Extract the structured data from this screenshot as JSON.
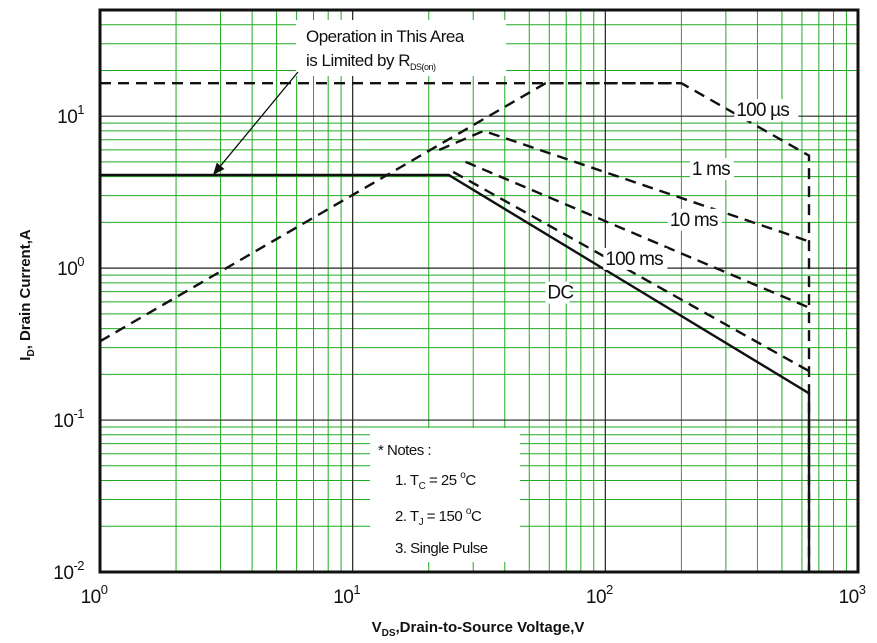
{
  "chart_data": {
    "type": "line",
    "x_scale": "log",
    "y_scale": "log",
    "xlim": [
      1,
      1000
    ],
    "ylim": [
      0.01,
      50
    ],
    "xlabel": {
      "main": "V",
      "sub": "DS",
      "rest": ",Drain-to-Source Voltage,V"
    },
    "ylabel": {
      "main": "I",
      "sub": "D",
      "rest": ", Drain Current,A"
    },
    "x_ticks": [
      {
        "value": 1,
        "base": "10",
        "exp": "0"
      },
      {
        "value": 10,
        "base": "10",
        "exp": "1"
      },
      {
        "value": 100,
        "base": "10",
        "exp": "2"
      },
      {
        "value": 1000,
        "base": "10",
        "exp": "3"
      }
    ],
    "y_ticks": [
      {
        "value": 0.01,
        "base": "10",
        "exp": "-2"
      },
      {
        "value": 0.1,
        "base": "10",
        "exp": "-1"
      },
      {
        "value": 1,
        "base": "10",
        "exp": "0"
      },
      {
        "value": 10,
        "base": "10",
        "exp": "1"
      }
    ],
    "grid": true,
    "grid_color": "#22aa22",
    "series": [
      {
        "label": "100 µs",
        "style": "dashed",
        "points": [
          [
            1,
            0.33
          ],
          [
            58,
            16.5
          ],
          [
            200,
            16.5
          ],
          [
            640,
            5.5
          ],
          [
            640,
            0.01
          ]
        ]
      },
      {
        "label": "1 ms",
        "style": "dashed",
        "points": [
          [
            22,
            6.0
          ],
          [
            33,
            8.0
          ],
          [
            640,
            1.5
          ]
        ]
      },
      {
        "label": "10 ms",
        "style": "dashed",
        "points": [
          [
            28,
            5.0
          ],
          [
            640,
            0.55
          ]
        ]
      },
      {
        "label": "100 ms",
        "style": "dashed",
        "points": [
          [
            25,
            4.3
          ],
          [
            640,
            0.21
          ]
        ]
      },
      {
        "label": "DC",
        "style": "solid",
        "points": [
          [
            1,
            4.1
          ],
          [
            24,
            4.1
          ],
          [
            640,
            0.15
          ],
          [
            640,
            0.01
          ]
        ]
      },
      {
        "label": "",
        "style": "dashed",
        "points": [
          [
            1,
            16.5
          ],
          [
            200,
            16.5
          ]
        ]
      }
    ],
    "curve_labels": [
      {
        "text": "100 µs",
        "x": 330,
        "y": 10
      },
      {
        "text": "1 ms",
        "x": 220,
        "y": 4.1
      },
      {
        "text": "10 ms",
        "x": 180,
        "y": 1.9
      },
      {
        "text": "100 ms",
        "x": 100,
        "y": 1.05
      },
      {
        "text": "DC",
        "x": 59,
        "y": 0.63
      }
    ],
    "annotation": {
      "line1": "Operation in This Area",
      "line2_main": "is Limited by R",
      "line2_sub": "DS(on)",
      "arrow_to": [
        2.8,
        4.1
      ]
    },
    "notes": {
      "title": "* Notes :",
      "n1_pre": "1. T",
      "n1_sub": "C",
      "n1_val": " = 25 ",
      "n1_sup": "o",
      "n1_unit": "C",
      "n2_pre": "2. T",
      "n2_sub": "J",
      "n2_val": " = 150 ",
      "n2_sup": "o",
      "n2_unit": "C",
      "n3": "3. Single Pulse"
    }
  }
}
